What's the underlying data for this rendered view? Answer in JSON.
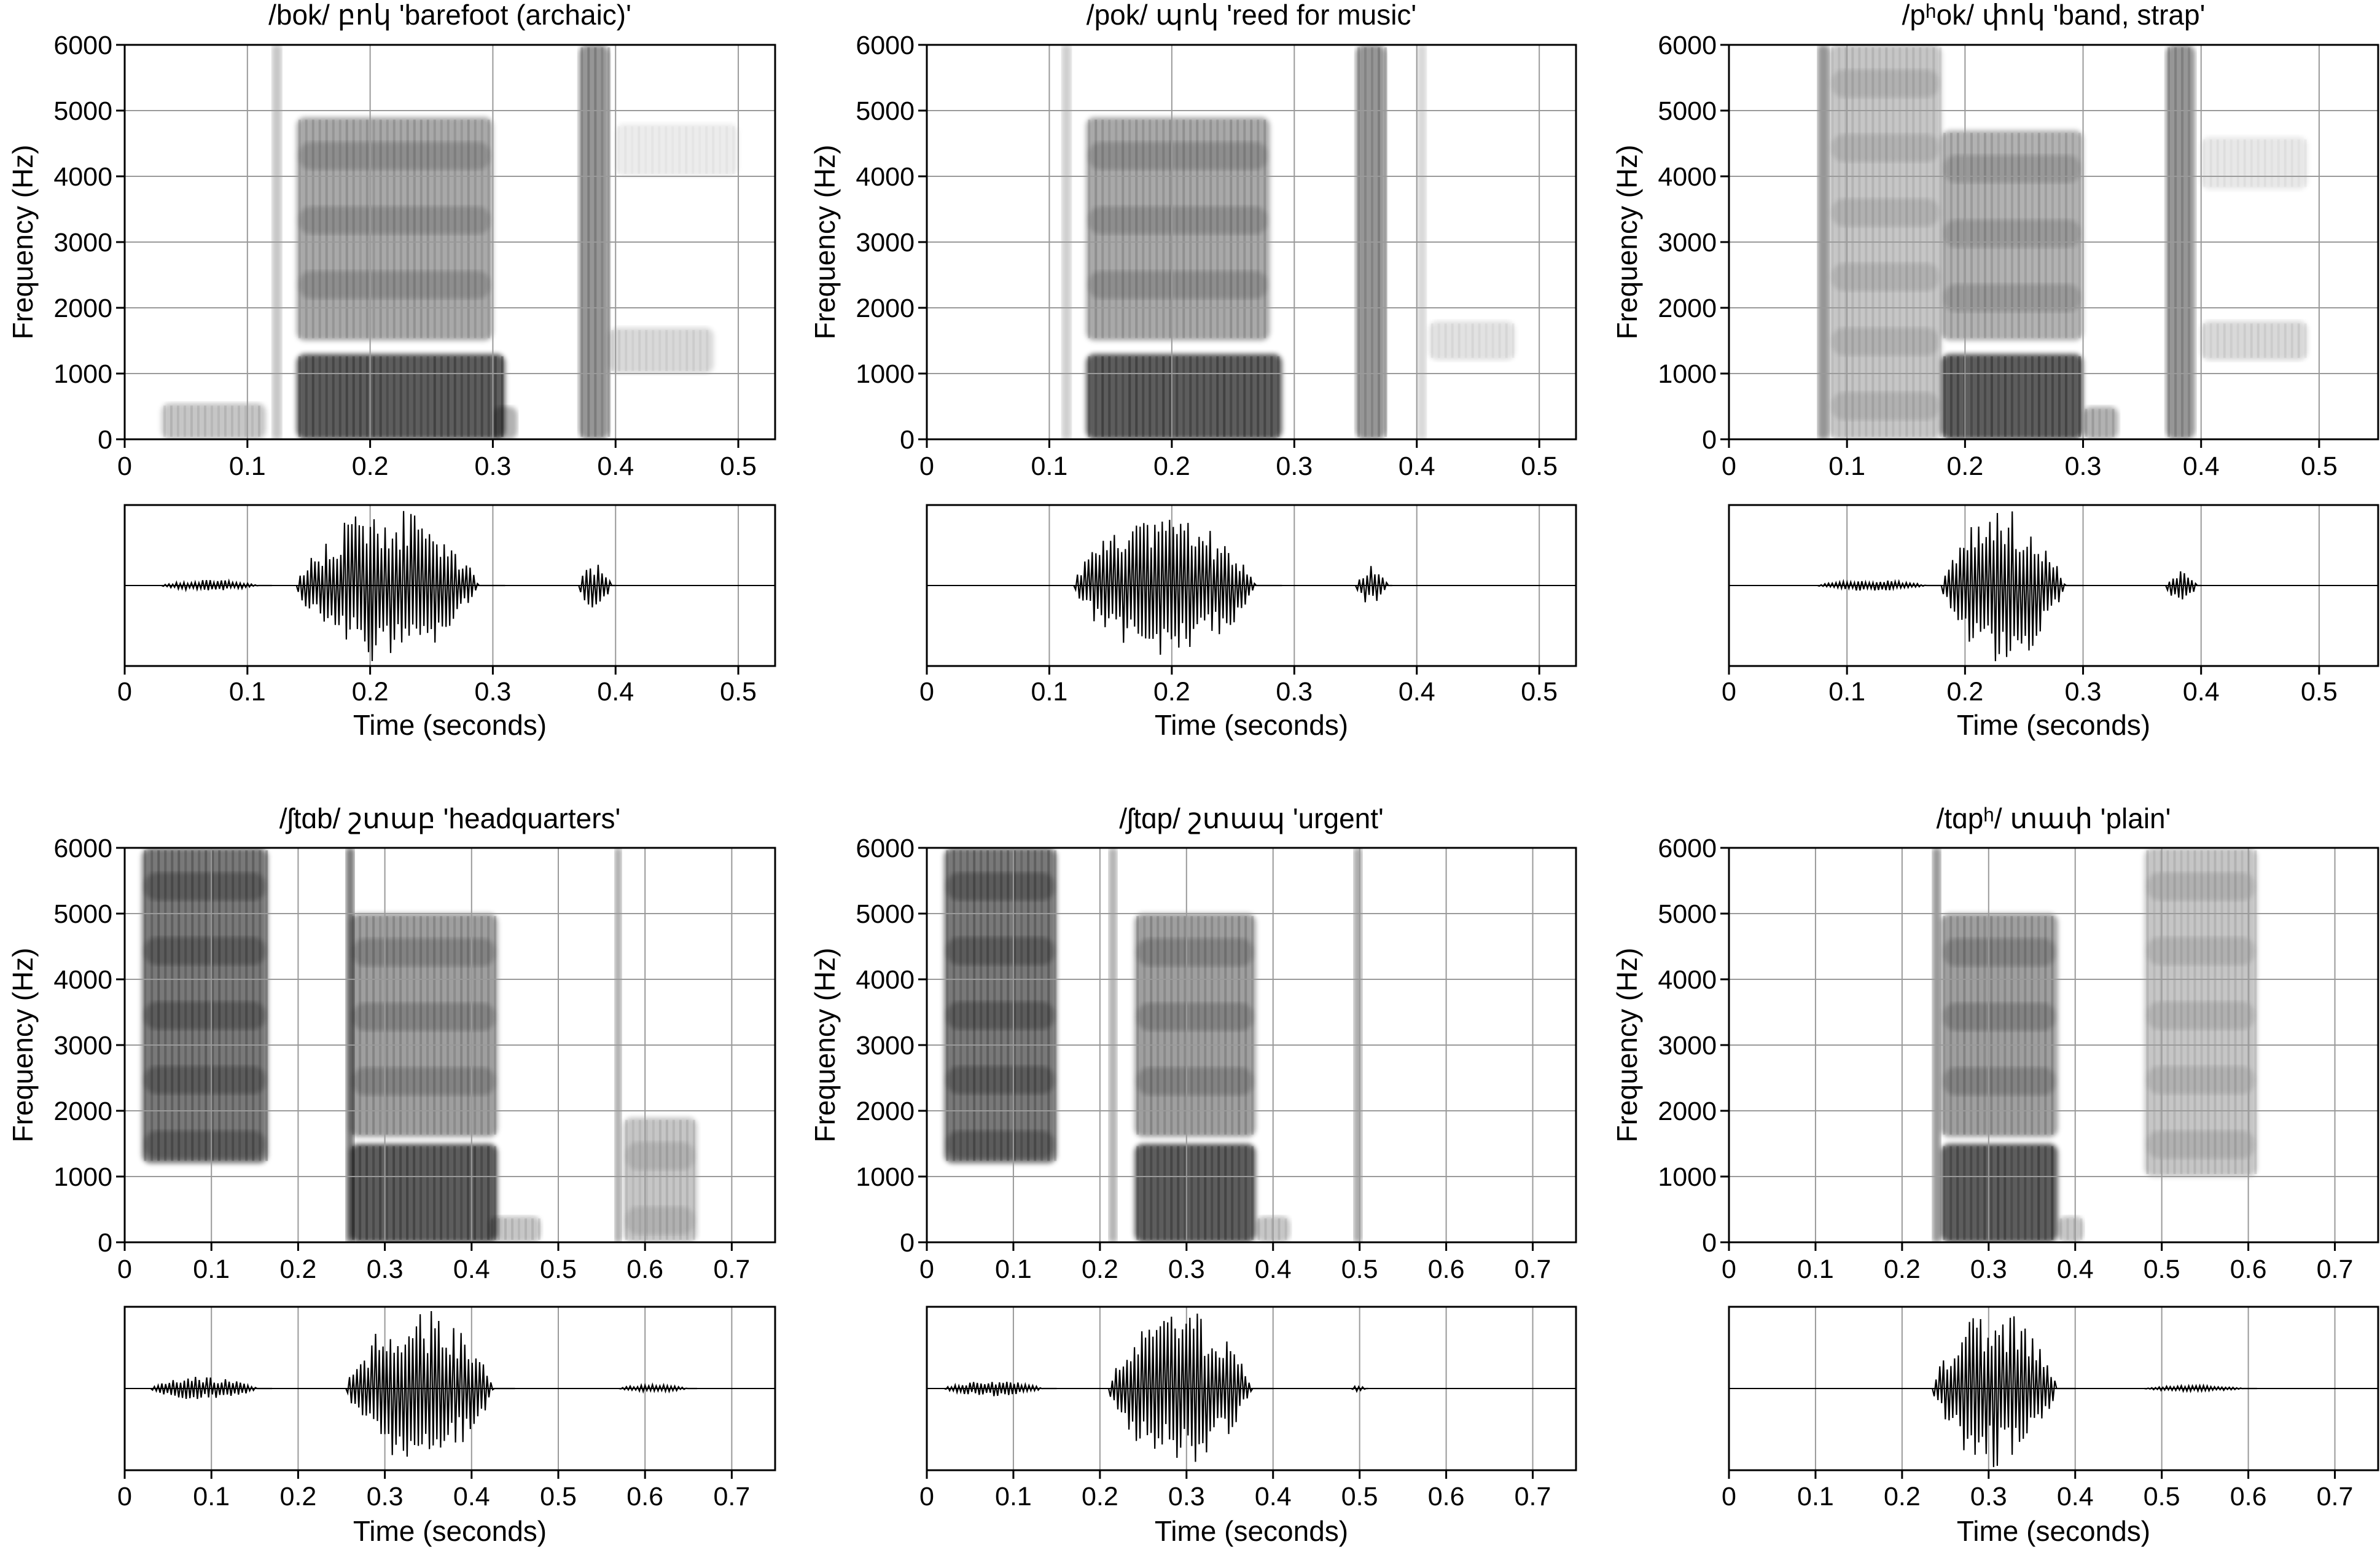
{
  "figure": {
    "y_axis_label": "Frequency (Hz)",
    "x_axis_label": "Time (seconds)"
  },
  "colors": {
    "ink": "#000000",
    "grid": "#9a9a9a",
    "background": "#ffffff"
  },
  "chart_data": [
    {
      "type": "heatmap",
      "title": "/bok/ բոկ 'barefoot (archaic)'",
      "spectrogram": {
        "xlabel": "",
        "ylabel": "Frequency (Hz)",
        "xlim": [
          0,
          0.53
        ],
        "ylim": [
          0,
          6000
        ],
        "xticks": [
          0,
          0.1,
          0.2,
          0.3,
          0.4,
          0.5
        ],
        "xtick_labels": [
          "0",
          "0.1",
          "0.2",
          "0.3",
          "0.4",
          "0.5"
        ],
        "yticks": [
          0,
          1000,
          2000,
          3000,
          4000,
          5000,
          6000
        ],
        "ytick_labels": [
          "0",
          "1000",
          "2000",
          "3000",
          "4000",
          "5000",
          "6000"
        ],
        "grid": true,
        "energy": [
          {
            "t0": 0.03,
            "t1": 0.115,
            "f0": 0,
            "f1": 550,
            "level": 0.3
          },
          {
            "t0": 0.12,
            "t1": 0.128,
            "f0": 0,
            "f1": 6000,
            "level": 0.3
          },
          {
            "t0": 0.14,
            "t1": 0.3,
            "f0": 1500,
            "f1": 4900,
            "level": 0.45
          },
          {
            "t0": 0.14,
            "t1": 0.31,
            "f0": 0,
            "f1": 1300,
            "level": 0.85
          },
          {
            "t0": 0.3,
            "t1": 0.32,
            "f0": 0,
            "f1": 500,
            "level": 0.4
          },
          {
            "t0": 0.37,
            "t1": 0.395,
            "f0": 0,
            "f1": 6000,
            "level": 0.55
          },
          {
            "t0": 0.395,
            "t1": 0.48,
            "f0": 1000,
            "f1": 1700,
            "level": 0.2
          },
          {
            "t0": 0.4,
            "t1": 0.5,
            "f0": 4000,
            "f1": 4800,
            "level": 0.1
          }
        ]
      },
      "waveform": {
        "xlabel": "Time (seconds)",
        "xlim": [
          0,
          0.53
        ],
        "xticks": [
          0,
          0.1,
          0.2,
          0.3,
          0.4,
          0.5
        ],
        "xtick_labels": [
          "0",
          "0.1",
          "0.2",
          "0.3",
          "0.4",
          "0.5"
        ],
        "grid": true,
        "bursts": [
          {
            "t0": 0.03,
            "t1": 0.12,
            "amp": 0.07
          },
          {
            "t0": 0.14,
            "t1": 0.31,
            "amp": 1.0
          },
          {
            "t0": 0.37,
            "t1": 0.4,
            "amp": 0.3
          }
        ]
      }
    },
    {
      "type": "heatmap",
      "title": "/pok/ պոկ 'reed for music'",
      "spectrogram": {
        "xlabel": "",
        "ylabel": "Frequency (Hz)",
        "xlim": [
          0,
          0.53
        ],
        "ylim": [
          0,
          6000
        ],
        "xticks": [
          0,
          0.1,
          0.2,
          0.3,
          0.4,
          0.5
        ],
        "xtick_labels": [
          "0",
          "0.1",
          "0.2",
          "0.3",
          "0.4",
          "0.5"
        ],
        "yticks": [
          0,
          1000,
          2000,
          3000,
          4000,
          5000,
          6000
        ],
        "ytick_labels": [
          "0",
          "1000",
          "2000",
          "3000",
          "4000",
          "5000",
          "6000"
        ],
        "grid": true,
        "energy": [
          {
            "t0": 0.11,
            "t1": 0.118,
            "f0": 0,
            "f1": 6000,
            "level": 0.25
          },
          {
            "t0": 0.13,
            "t1": 0.28,
            "f0": 1500,
            "f1": 4900,
            "level": 0.45
          },
          {
            "t0": 0.13,
            "t1": 0.29,
            "f0": 0,
            "f1": 1300,
            "level": 0.85
          },
          {
            "t0": 0.35,
            "t1": 0.375,
            "f0": 0,
            "f1": 6000,
            "level": 0.55
          },
          {
            "t0": 0.4,
            "t1": 0.408,
            "f0": 0,
            "f1": 6000,
            "level": 0.2
          },
          {
            "t0": 0.41,
            "t1": 0.48,
            "f0": 1200,
            "f1": 1800,
            "level": 0.15
          }
        ]
      },
      "waveform": {
        "xlabel": "Time (seconds)",
        "xlim": [
          0,
          0.53
        ],
        "xticks": [
          0,
          0.1,
          0.2,
          0.3,
          0.4,
          0.5
        ],
        "xtick_labels": [
          "0",
          "0.1",
          "0.2",
          "0.3",
          "0.4",
          "0.5"
        ],
        "grid": true,
        "bursts": [
          {
            "t0": 0.12,
            "t1": 0.29,
            "amp": 1.0
          },
          {
            "t0": 0.35,
            "t1": 0.38,
            "amp": 0.25
          }
        ]
      }
    },
    {
      "type": "heatmap",
      "title": "/pʰok/ փոկ 'band, strap'",
      "spectrogram": {
        "xlabel": "",
        "ylabel": "Frequency (Hz)",
        "xlim": [
          0,
          0.55
        ],
        "ylim": [
          0,
          6000
        ],
        "xticks": [
          0,
          0.1,
          0.2,
          0.3,
          0.4,
          0.5
        ],
        "xtick_labels": [
          "0",
          "0.1",
          "0.2",
          "0.3",
          "0.4",
          "0.5"
        ],
        "yticks": [
          0,
          1000,
          2000,
          3000,
          4000,
          5000,
          6000
        ],
        "ytick_labels": [
          "0",
          "1000",
          "2000",
          "3000",
          "4000",
          "5000",
          "6000"
        ],
        "grid": true,
        "energy": [
          {
            "t0": 0.075,
            "t1": 0.085,
            "f0": 0,
            "f1": 6000,
            "level": 0.55
          },
          {
            "t0": 0.085,
            "t1": 0.18,
            "f0": 0,
            "f1": 6000,
            "level": 0.3
          },
          {
            "t0": 0.18,
            "t1": 0.3,
            "f0": 1500,
            "f1": 4700,
            "level": 0.4
          },
          {
            "t0": 0.18,
            "t1": 0.3,
            "f0": 0,
            "f1": 1300,
            "level": 0.85
          },
          {
            "t0": 0.3,
            "t1": 0.33,
            "f0": 0,
            "f1": 500,
            "level": 0.4
          },
          {
            "t0": 0.37,
            "t1": 0.395,
            "f0": 0,
            "f1": 6000,
            "level": 0.55
          },
          {
            "t0": 0.4,
            "t1": 0.49,
            "f0": 1200,
            "f1": 1800,
            "level": 0.2
          },
          {
            "t0": 0.4,
            "t1": 0.49,
            "f0": 3800,
            "f1": 4600,
            "level": 0.12
          }
        ]
      },
      "waveform": {
        "xlabel": "Time (seconds)",
        "xlim": [
          0,
          0.55
        ],
        "xticks": [
          0,
          0.1,
          0.2,
          0.3,
          0.4,
          0.5
        ],
        "xtick_labels": [
          "0",
          "0.1",
          "0.2",
          "0.3",
          "0.4",
          "0.5"
        ],
        "grid": true,
        "bursts": [
          {
            "t0": 0.075,
            "t1": 0.18,
            "amp": 0.07
          },
          {
            "t0": 0.18,
            "t1": 0.3,
            "amp": 1.0
          },
          {
            "t0": 0.37,
            "t1": 0.4,
            "amp": 0.2
          }
        ]
      }
    },
    {
      "type": "heatmap",
      "title": "/ʃtɑb/ շտաբ 'headquarters'",
      "spectrogram": {
        "xlabel": "",
        "ylabel": "Frequency (Hz)",
        "xlim": [
          0,
          0.75
        ],
        "ylim": [
          0,
          6000
        ],
        "xticks": [
          0,
          0.1,
          0.2,
          0.3,
          0.4,
          0.5,
          0.6,
          0.7
        ],
        "xtick_labels": [
          "0",
          "0.1",
          "0.2",
          "0.3",
          "0.4",
          "0.5",
          "0.6",
          "0.7"
        ],
        "yticks": [
          0,
          1000,
          2000,
          3000,
          4000,
          5000,
          6000
        ],
        "ytick_labels": [
          "0",
          "1000",
          "2000",
          "3000",
          "4000",
          "5000",
          "6000"
        ],
        "grid": true,
        "energy": [
          {
            "t0": 0.02,
            "t1": 0.165,
            "f0": 1200,
            "f1": 6000,
            "level": 0.7
          },
          {
            "t0": 0.255,
            "t1": 0.265,
            "f0": 0,
            "f1": 6000,
            "level": 0.7
          },
          {
            "t0": 0.26,
            "t1": 0.43,
            "f0": 1600,
            "f1": 5000,
            "level": 0.5
          },
          {
            "t0": 0.26,
            "t1": 0.43,
            "f0": 0,
            "f1": 1500,
            "level": 0.85
          },
          {
            "t0": 0.42,
            "t1": 0.48,
            "f0": 0,
            "f1": 400,
            "level": 0.3
          },
          {
            "t0": 0.565,
            "t1": 0.573,
            "f0": 0,
            "f1": 6000,
            "level": 0.45
          },
          {
            "t0": 0.575,
            "t1": 0.66,
            "f0": 0,
            "f1": 1900,
            "level": 0.3
          }
        ]
      },
      "waveform": {
        "xlabel": "Time (seconds)",
        "xlim": [
          0,
          0.75
        ],
        "xticks": [
          0,
          0.1,
          0.2,
          0.3,
          0.4,
          0.5,
          0.6,
          0.7
        ],
        "xtick_labels": [
          "0",
          "0.1",
          "0.2",
          "0.3",
          "0.4",
          "0.5",
          "0.6",
          "0.7"
        ],
        "grid": true,
        "bursts": [
          {
            "t0": 0.03,
            "t1": 0.17,
            "amp": 0.15
          },
          {
            "t0": 0.255,
            "t1": 0.45,
            "amp": 1.0
          },
          {
            "t0": 0.57,
            "t1": 0.66,
            "amp": 0.05
          }
        ]
      }
    },
    {
      "type": "heatmap",
      "title": "/ʃtɑp/ շտապ 'urgent'",
      "spectrogram": {
        "xlabel": "",
        "ylabel": "Frequency (Hz)",
        "xlim": [
          0,
          0.75
        ],
        "ylim": [
          0,
          6000
        ],
        "xticks": [
          0,
          0.1,
          0.2,
          0.3,
          0.4,
          0.5,
          0.6,
          0.7
        ],
        "xtick_labels": [
          "0",
          "0.1",
          "0.2",
          "0.3",
          "0.4",
          "0.5",
          "0.6",
          "0.7"
        ],
        "yticks": [
          0,
          1000,
          2000,
          3000,
          4000,
          5000,
          6000
        ],
        "ytick_labels": [
          "0",
          "1000",
          "2000",
          "3000",
          "4000",
          "5000",
          "6000"
        ],
        "grid": true,
        "energy": [
          {
            "t0": 0.02,
            "t1": 0.15,
            "f0": 1200,
            "f1": 6000,
            "level": 0.7
          },
          {
            "t0": 0.21,
            "t1": 0.22,
            "f0": 0,
            "f1": 6000,
            "level": 0.4
          },
          {
            "t0": 0.24,
            "t1": 0.38,
            "f0": 1600,
            "f1": 5000,
            "level": 0.5
          },
          {
            "t0": 0.24,
            "t1": 0.38,
            "f0": 0,
            "f1": 1500,
            "level": 0.85
          },
          {
            "t0": 0.38,
            "t1": 0.42,
            "f0": 0,
            "f1": 400,
            "level": 0.3
          },
          {
            "t0": 0.493,
            "t1": 0.503,
            "f0": 0,
            "f1": 6000,
            "level": 0.45
          }
        ]
      },
      "waveform": {
        "xlabel": "Time (seconds)",
        "xlim": [
          0,
          0.75
        ],
        "xticks": [
          0,
          0.1,
          0.2,
          0.3,
          0.4,
          0.5,
          0.6,
          0.7
        ],
        "xtick_labels": [
          "0",
          "0.1",
          "0.2",
          "0.3",
          "0.4",
          "0.5",
          "0.6",
          "0.7"
        ],
        "grid": true,
        "bursts": [
          {
            "t0": 0.02,
            "t1": 0.15,
            "amp": 0.1
          },
          {
            "t0": 0.21,
            "t1": 0.4,
            "amp": 1.0
          },
          {
            "t0": 0.49,
            "t1": 0.51,
            "amp": 0.04
          }
        ]
      }
    },
    {
      "type": "heatmap",
      "title": "/tɑpʰ/ տափ 'plain'",
      "spectrogram": {
        "xlabel": "",
        "ylabel": "Frequency (Hz)",
        "xlim": [
          0,
          0.75
        ],
        "ylim": [
          0,
          6000
        ],
        "xticks": [
          0,
          0.1,
          0.2,
          0.3,
          0.4,
          0.5,
          0.6,
          0.7
        ],
        "xtick_labels": [
          "0",
          "0.1",
          "0.2",
          "0.3",
          "0.4",
          "0.5",
          "0.6",
          "0.7"
        ],
        "yticks": [
          0,
          1000,
          2000,
          3000,
          4000,
          5000,
          6000
        ],
        "ytick_labels": [
          "0",
          "1000",
          "2000",
          "3000",
          "4000",
          "5000",
          "6000"
        ],
        "grid": true,
        "energy": [
          {
            "t0": 0.235,
            "t1": 0.245,
            "f0": 0,
            "f1": 6000,
            "level": 0.55
          },
          {
            "t0": 0.245,
            "t1": 0.38,
            "f0": 1600,
            "f1": 5000,
            "level": 0.5
          },
          {
            "t0": 0.245,
            "t1": 0.38,
            "f0": 0,
            "f1": 1500,
            "level": 0.85
          },
          {
            "t0": 0.38,
            "t1": 0.41,
            "f0": 0,
            "f1": 400,
            "level": 0.3
          },
          {
            "t0": 0.48,
            "t1": 0.61,
            "f0": 1000,
            "f1": 6000,
            "level": 0.3
          }
        ]
      },
      "waveform": {
        "xlabel": "Time (seconds)",
        "xlim": [
          0,
          0.75
        ],
        "xticks": [
          0,
          0.1,
          0.2,
          0.3,
          0.4,
          0.5,
          0.6,
          0.7
        ],
        "xtick_labels": [
          "0",
          "0.1",
          "0.2",
          "0.3",
          "0.4",
          "0.5",
          "0.6",
          "0.7"
        ],
        "grid": true,
        "bursts": [
          {
            "t0": 0.235,
            "t1": 0.4,
            "amp": 1.0
          },
          {
            "t0": 0.48,
            "t1": 0.61,
            "amp": 0.04
          }
        ]
      }
    }
  ]
}
